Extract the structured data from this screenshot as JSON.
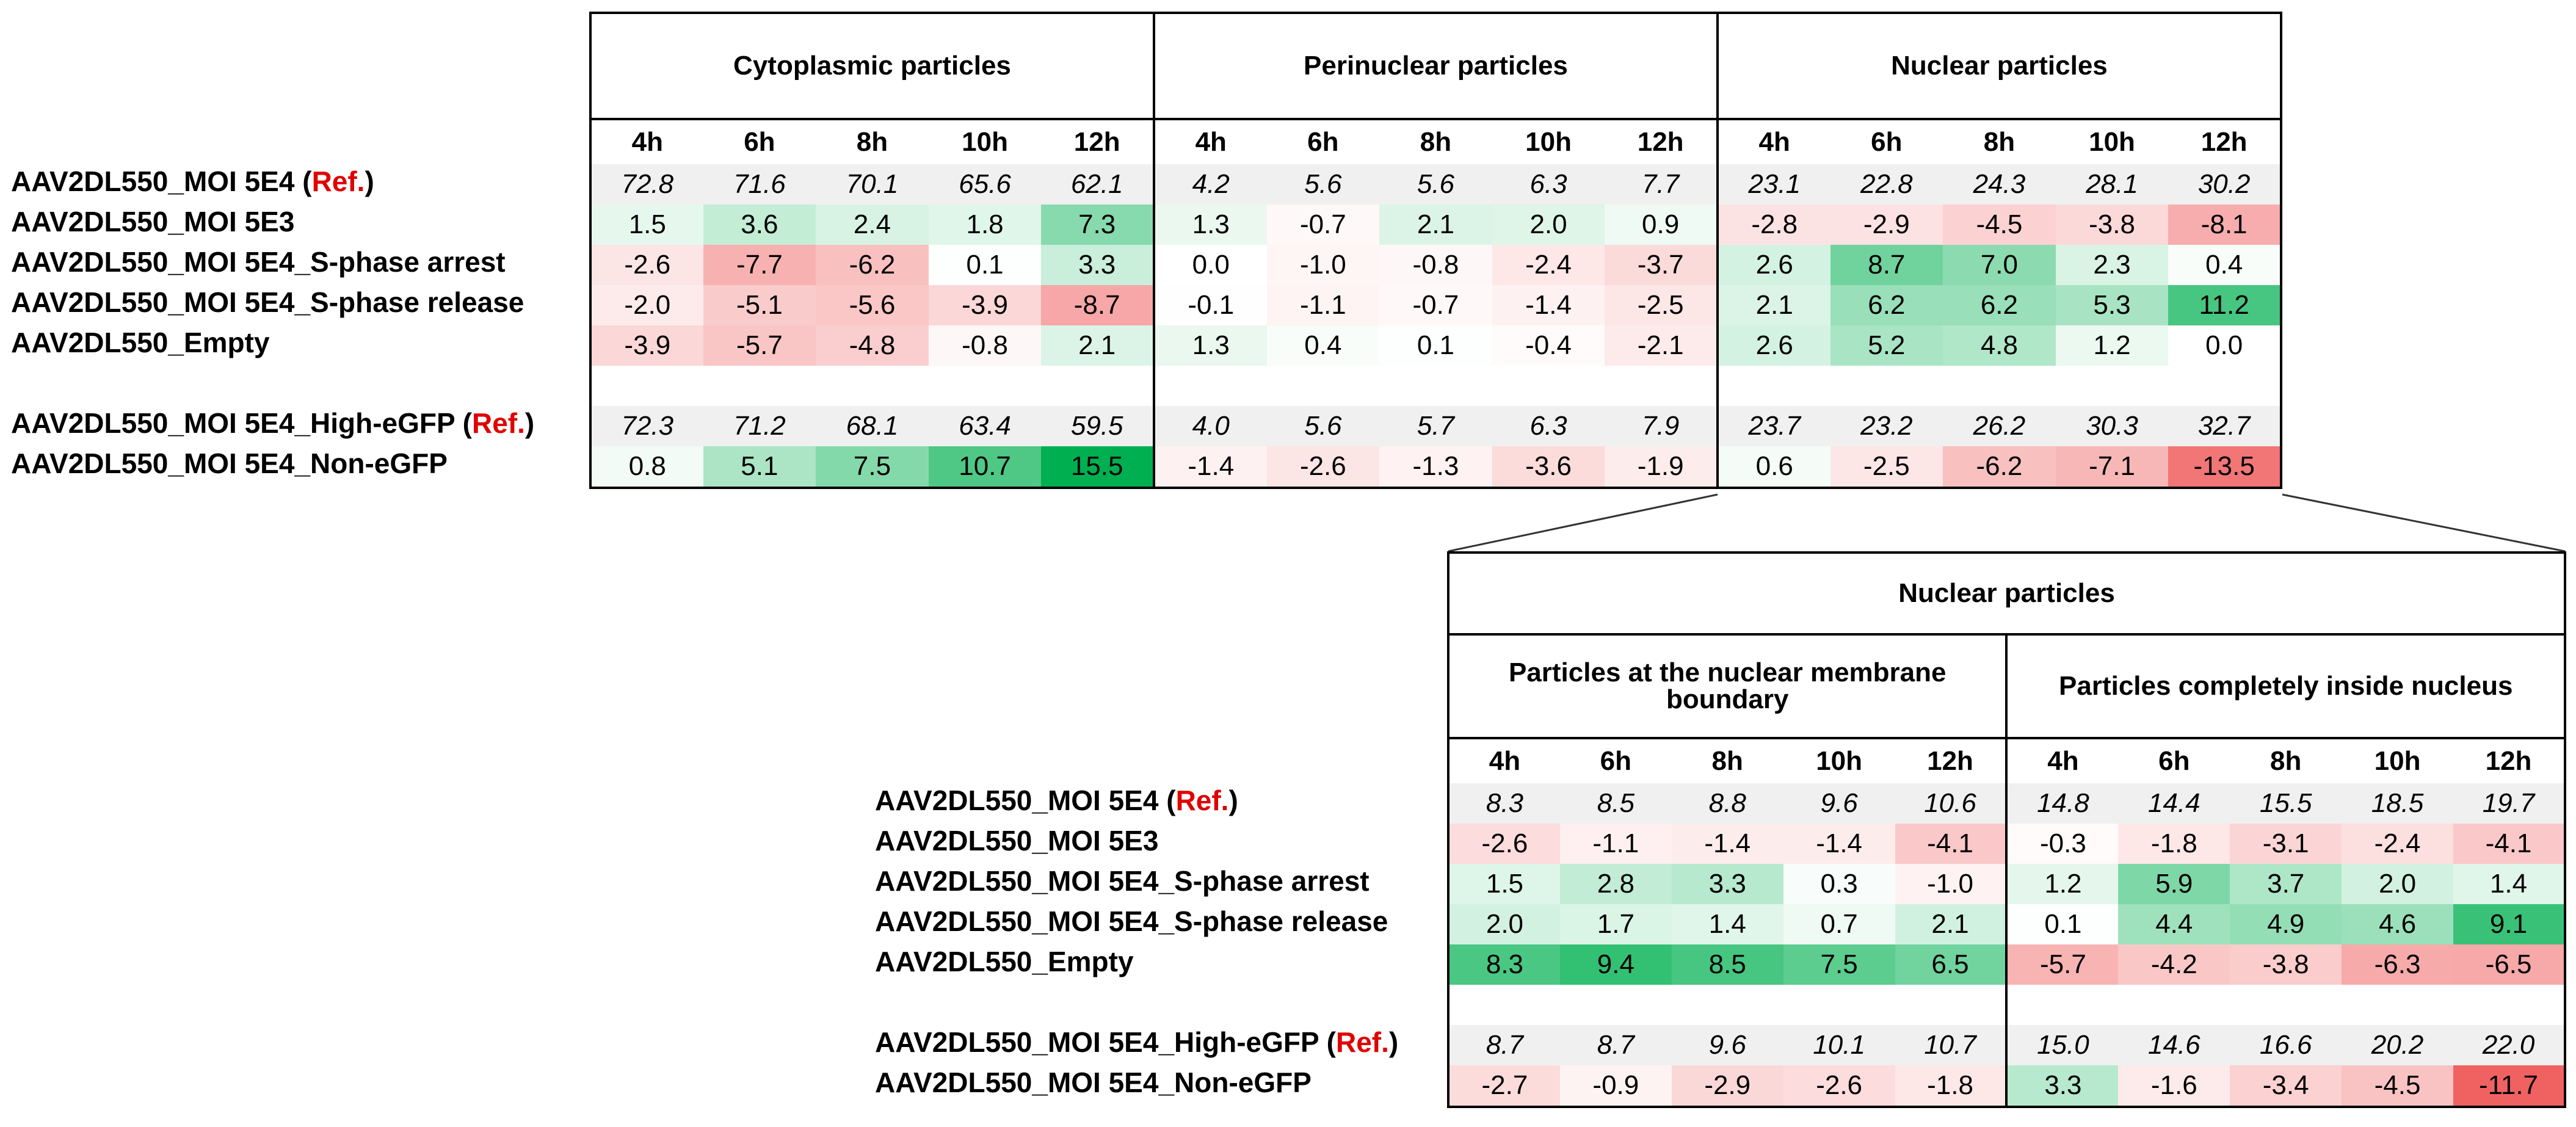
{
  "colors": {
    "positive": "#00b050",
    "negative": "#f06262",
    "ref_bg": "#f0f0f0",
    "ref_label": "#e00000"
  },
  "chart_data": [
    {
      "type": "heatmap",
      "title": "",
      "column_groups": [
        "Cytoplasmic particles",
        "Perinuclear particles",
        "Nuclear particles"
      ],
      "timepoints": [
        "4h",
        "6h",
        "8h",
        "10h",
        "12h"
      ],
      "color_scale_range": [
        -15.5,
        15.5
      ],
      "rows": [
        {
          "label": "AAV2DL550_MOI 5E4",
          "ref_tag": "Ref.",
          "is_ref": true,
          "values": [
            72.8,
            71.6,
            70.1,
            65.6,
            62.1,
            4.2,
            5.6,
            5.6,
            6.3,
            7.7,
            23.1,
            22.8,
            24.3,
            28.1,
            30.2
          ]
        },
        {
          "label": "AAV2DL550_MOI 5E3",
          "ref_tag": null,
          "is_ref": false,
          "values": [
            1.5,
            3.6,
            2.4,
            1.8,
            7.3,
            1.3,
            -0.7,
            2.1,
            2.0,
            0.9,
            -2.8,
            -2.9,
            -4.5,
            -3.8,
            -8.1
          ]
        },
        {
          "label": "AAV2DL550_MOI 5E4_S-phase arrest",
          "ref_tag": null,
          "is_ref": false,
          "values": [
            -2.6,
            -7.7,
            -6.2,
            0.1,
            3.3,
            0.0,
            -1.0,
            -0.8,
            -2.4,
            -3.7,
            2.6,
            8.7,
            7.0,
            2.3,
            0.4
          ]
        },
        {
          "label": "AAV2DL550_MOI 5E4_S-phase release",
          "ref_tag": null,
          "is_ref": false,
          "values": [
            -2.0,
            -5.1,
            -5.6,
            -3.9,
            -8.7,
            -0.1,
            -1.1,
            -0.7,
            -1.4,
            -2.5,
            2.1,
            6.2,
            6.2,
            5.3,
            11.2
          ]
        },
        {
          "label": "AAV2DL550_Empty",
          "ref_tag": null,
          "is_ref": false,
          "values": [
            -3.9,
            -5.7,
            -4.8,
            -0.8,
            2.1,
            1.3,
            0.4,
            0.1,
            -0.4,
            -2.1,
            2.6,
            5.2,
            4.8,
            1.2,
            0.0
          ]
        },
        {
          "spacer": true
        },
        {
          "label": "AAV2DL550_MOI 5E4_High-eGFP",
          "ref_tag": "Ref.",
          "is_ref": true,
          "values": [
            72.3,
            71.2,
            68.1,
            63.4,
            59.5,
            4.0,
            5.6,
            5.7,
            6.3,
            7.9,
            23.7,
            23.2,
            26.2,
            30.3,
            32.7
          ]
        },
        {
          "label": "AAV2DL550_MOI 5E4_Non-eGFP",
          "ref_tag": null,
          "is_ref": false,
          "values": [
            0.8,
            5.1,
            7.5,
            10.7,
            15.5,
            -1.4,
            -2.6,
            -1.3,
            -3.6,
            -1.9,
            0.6,
            -2.5,
            -6.2,
            -7.1,
            -13.5
          ]
        }
      ]
    },
    {
      "type": "heatmap",
      "title": "Nuclear particles",
      "column_groups": [
        "Particles at the nuclear membrane boundary",
        "Particles completely inside nucleus"
      ],
      "timepoints": [
        "4h",
        "6h",
        "8h",
        "10h",
        "12h"
      ],
      "color_scale_range": [
        -11.7,
        11.7
      ],
      "rows": [
        {
          "label": "AAV2DL550_MOI 5E4",
          "ref_tag": "Ref.",
          "is_ref": true,
          "values": [
            8.3,
            8.5,
            8.8,
            9.6,
            10.6,
            14.8,
            14.4,
            15.5,
            18.5,
            19.7
          ]
        },
        {
          "label": "AAV2DL550_MOI 5E3",
          "ref_tag": null,
          "is_ref": false,
          "values": [
            -2.6,
            -1.1,
            -1.4,
            -1.4,
            -4.1,
            -0.3,
            -1.8,
            -3.1,
            -2.4,
            -4.1
          ]
        },
        {
          "label": "AAV2DL550_MOI 5E4_S-phase arrest",
          "ref_tag": null,
          "is_ref": false,
          "values": [
            1.5,
            2.8,
            3.3,
            0.3,
            -1.0,
            1.2,
            5.9,
            3.7,
            2.0,
            1.4
          ]
        },
        {
          "label": "AAV2DL550_MOI 5E4_S-phase release",
          "ref_tag": null,
          "is_ref": false,
          "values": [
            2.0,
            1.7,
            1.4,
            0.7,
            2.1,
            0.1,
            4.4,
            4.9,
            4.6,
            9.1
          ]
        },
        {
          "label": "AAV2DL550_Empty",
          "ref_tag": null,
          "is_ref": false,
          "values": [
            8.3,
            9.4,
            8.5,
            7.5,
            6.5,
            -5.7,
            -4.2,
            -3.8,
            -6.3,
            -6.5
          ]
        },
        {
          "spacer": true
        },
        {
          "label": "AAV2DL550_MOI 5E4_High-eGFP",
          "ref_tag": "Ref.",
          "is_ref": true,
          "values": [
            8.7,
            8.7,
            9.6,
            10.1,
            10.7,
            15.0,
            14.6,
            16.6,
            20.2,
            22.0
          ]
        },
        {
          "label": "AAV2DL550_MOI 5E4_Non-eGFP",
          "ref_tag": null,
          "is_ref": false,
          "values": [
            -2.7,
            -0.9,
            -2.9,
            -2.6,
            -1.8,
            3.3,
            -1.6,
            -3.4,
            -4.5,
            -11.7
          ]
        }
      ]
    }
  ]
}
